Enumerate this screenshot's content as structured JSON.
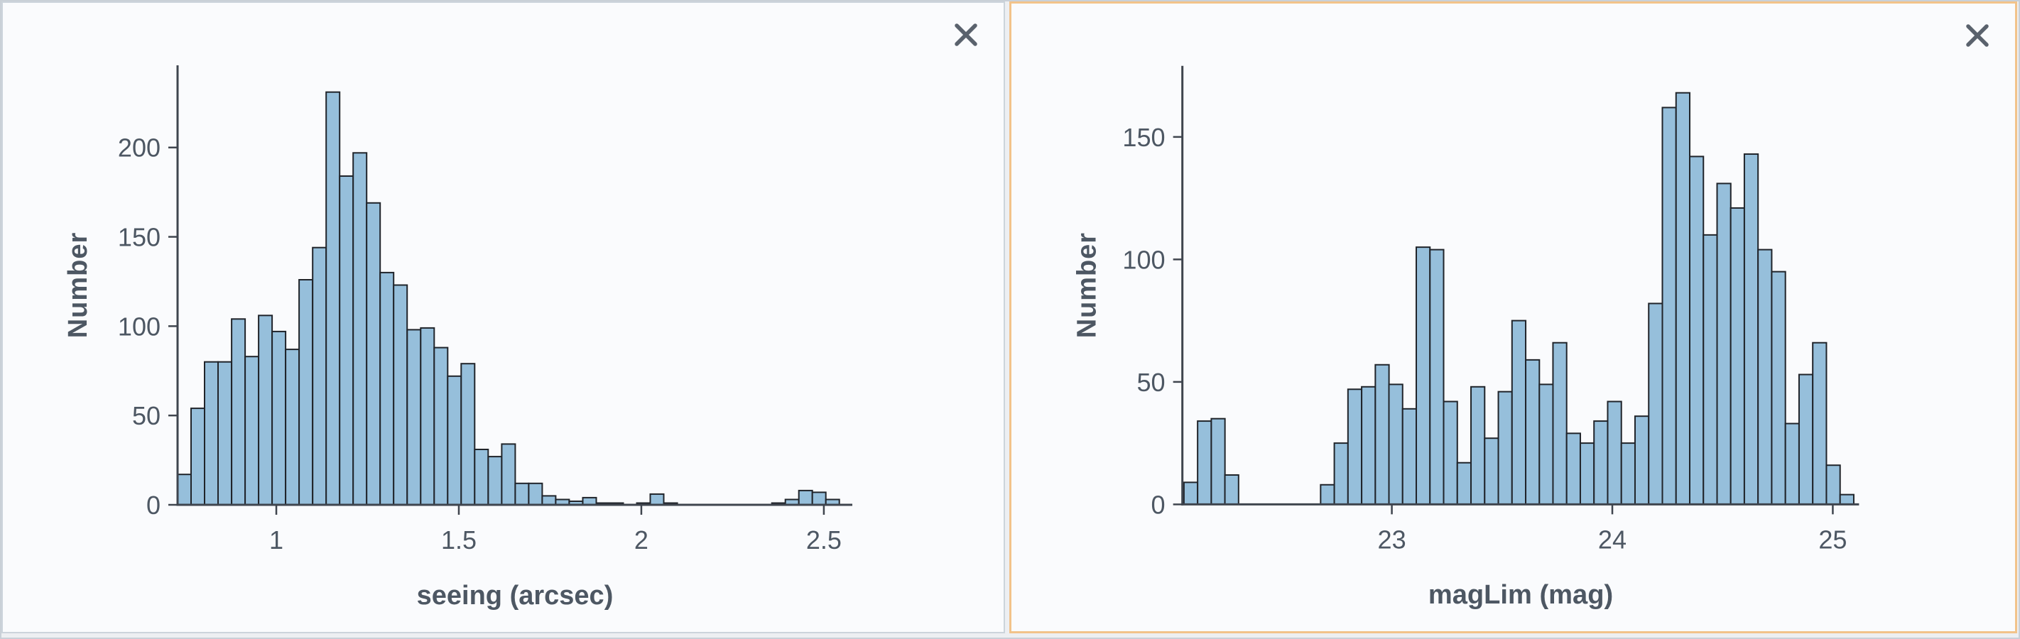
{
  "app": {
    "close_button_tooltip": "Close"
  },
  "colors": {
    "screen_background": "#edeff2",
    "screen_border": "#c9d0d7",
    "panel_background": "#fafbfd",
    "left_panel_border": "#ccd4db",
    "right_panel_border": "#f2c38a",
    "bar_fill": "#96bfdb",
    "bar_stroke": "#20242a",
    "axis_line": "#3f454e",
    "text": "#4d5763",
    "close_icon": "#5a626d"
  },
  "panels": [
    {
      "id": "seeing-histogram-panel",
      "border_color": "#ccd4db"
    },
    {
      "id": "maglim-histogram-panel",
      "border_color": "#f2c38a"
    }
  ],
  "chart_data": [
    {
      "type": "bar",
      "subtype": "histogram",
      "title": "",
      "xlabel": "seeing (arcsec)",
      "ylabel": "Number",
      "bin_start": 0.7295,
      "bin_width": 0.037,
      "values": [
        17,
        54,
        80,
        80,
        104,
        83,
        106,
        97,
        87,
        126,
        144,
        231,
        184,
        197,
        169,
        130,
        123,
        98,
        99,
        88,
        72,
        79,
        31,
        27,
        34,
        12,
        12,
        5,
        3,
        2,
        4,
        1,
        1,
        0,
        1,
        6,
        1,
        0,
        0,
        0,
        0,
        0,
        0,
        0,
        1,
        3,
        8,
        7,
        3
      ],
      "x_ticks": [
        1,
        1.5,
        2,
        2.5
      ],
      "x_tick_labels": [
        "1",
        "1.5",
        "2",
        "2.5"
      ],
      "y_ticks": [
        0,
        50,
        100,
        150,
        200
      ],
      "y_tick_labels": [
        "0",
        "50",
        "100",
        "150",
        "200"
      ],
      "xlim": [
        0.7295,
        2.578
      ],
      "ylim": [
        0,
        246
      ],
      "grid": false,
      "legend": "none"
    },
    {
      "type": "bar",
      "subtype": "histogram",
      "title": "",
      "xlabel": "magLim (mag)",
      "ylabel": "Number",
      "bin_start": 22.057,
      "bin_width": 0.062,
      "values": [
        9,
        34,
        35,
        12,
        0,
        0,
        0,
        0,
        0,
        0,
        8,
        25,
        47,
        48,
        57,
        49,
        39,
        105,
        104,
        42,
        17,
        48,
        27,
        46,
        75,
        59,
        49,
        66,
        29,
        25,
        34,
        42,
        25,
        36,
        82,
        162,
        168,
        142,
        110,
        131,
        121,
        143,
        104,
        95,
        33,
        53,
        66,
        16,
        4
      ],
      "x_ticks": [
        23,
        24,
        25
      ],
      "x_tick_labels": [
        "23",
        "24",
        "25"
      ],
      "y_ticks": [
        0,
        50,
        100,
        150
      ],
      "y_tick_labels": [
        "0",
        "50",
        "100",
        "150"
      ],
      "xlim": [
        22.05,
        25.119
      ],
      "ylim": [
        0,
        179
      ],
      "grid": false,
      "legend": "none"
    }
  ]
}
